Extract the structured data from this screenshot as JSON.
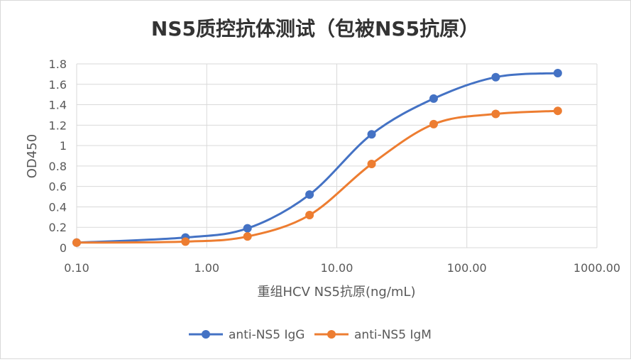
{
  "chart_data": {
    "type": "line",
    "title": "NS5质控抗体测试（包被NS5抗原）",
    "xlabel": "重组HCV NS5抗原(ng/mL)",
    "ylabel": "OD450",
    "x_scale": "log",
    "xlim": [
      0.1,
      1000
    ],
    "x_ticks": [
      0.1,
      1,
      10,
      100,
      1000
    ],
    "x_tick_labels": [
      "0.10",
      "1.00",
      "10.00",
      "100.00",
      "1000.00"
    ],
    "ylim": [
      0,
      1.8
    ],
    "y_ticks": [
      0,
      0.2,
      0.4,
      0.6,
      0.8,
      1,
      1.2,
      1.4,
      1.6,
      1.8
    ],
    "y_tick_labels": [
      "0",
      "0.2",
      "0.4",
      "0.6",
      "0.8",
      "1",
      "1.2",
      "1.4",
      "1.6",
      "1.8"
    ],
    "grid": true,
    "legend_position": "bottom",
    "series": [
      {
        "name": "anti-NS5 IgG",
        "color": "#4472C4",
        "x": [
          0.1,
          0.686,
          2.058,
          6.173,
          18.52,
          55.56,
          166.7,
          500
        ],
        "y": [
          0.05,
          0.1,
          0.19,
          0.52,
          1.11,
          1.46,
          1.67,
          1.71
        ]
      },
      {
        "name": "anti-NS5 IgM",
        "color": "#ED7D31",
        "x": [
          0.1,
          0.686,
          2.058,
          6.173,
          18.52,
          55.56,
          166.7,
          500
        ],
        "y": [
          0.05,
          0.06,
          0.11,
          0.32,
          0.82,
          1.21,
          1.31,
          1.34
        ]
      }
    ]
  }
}
